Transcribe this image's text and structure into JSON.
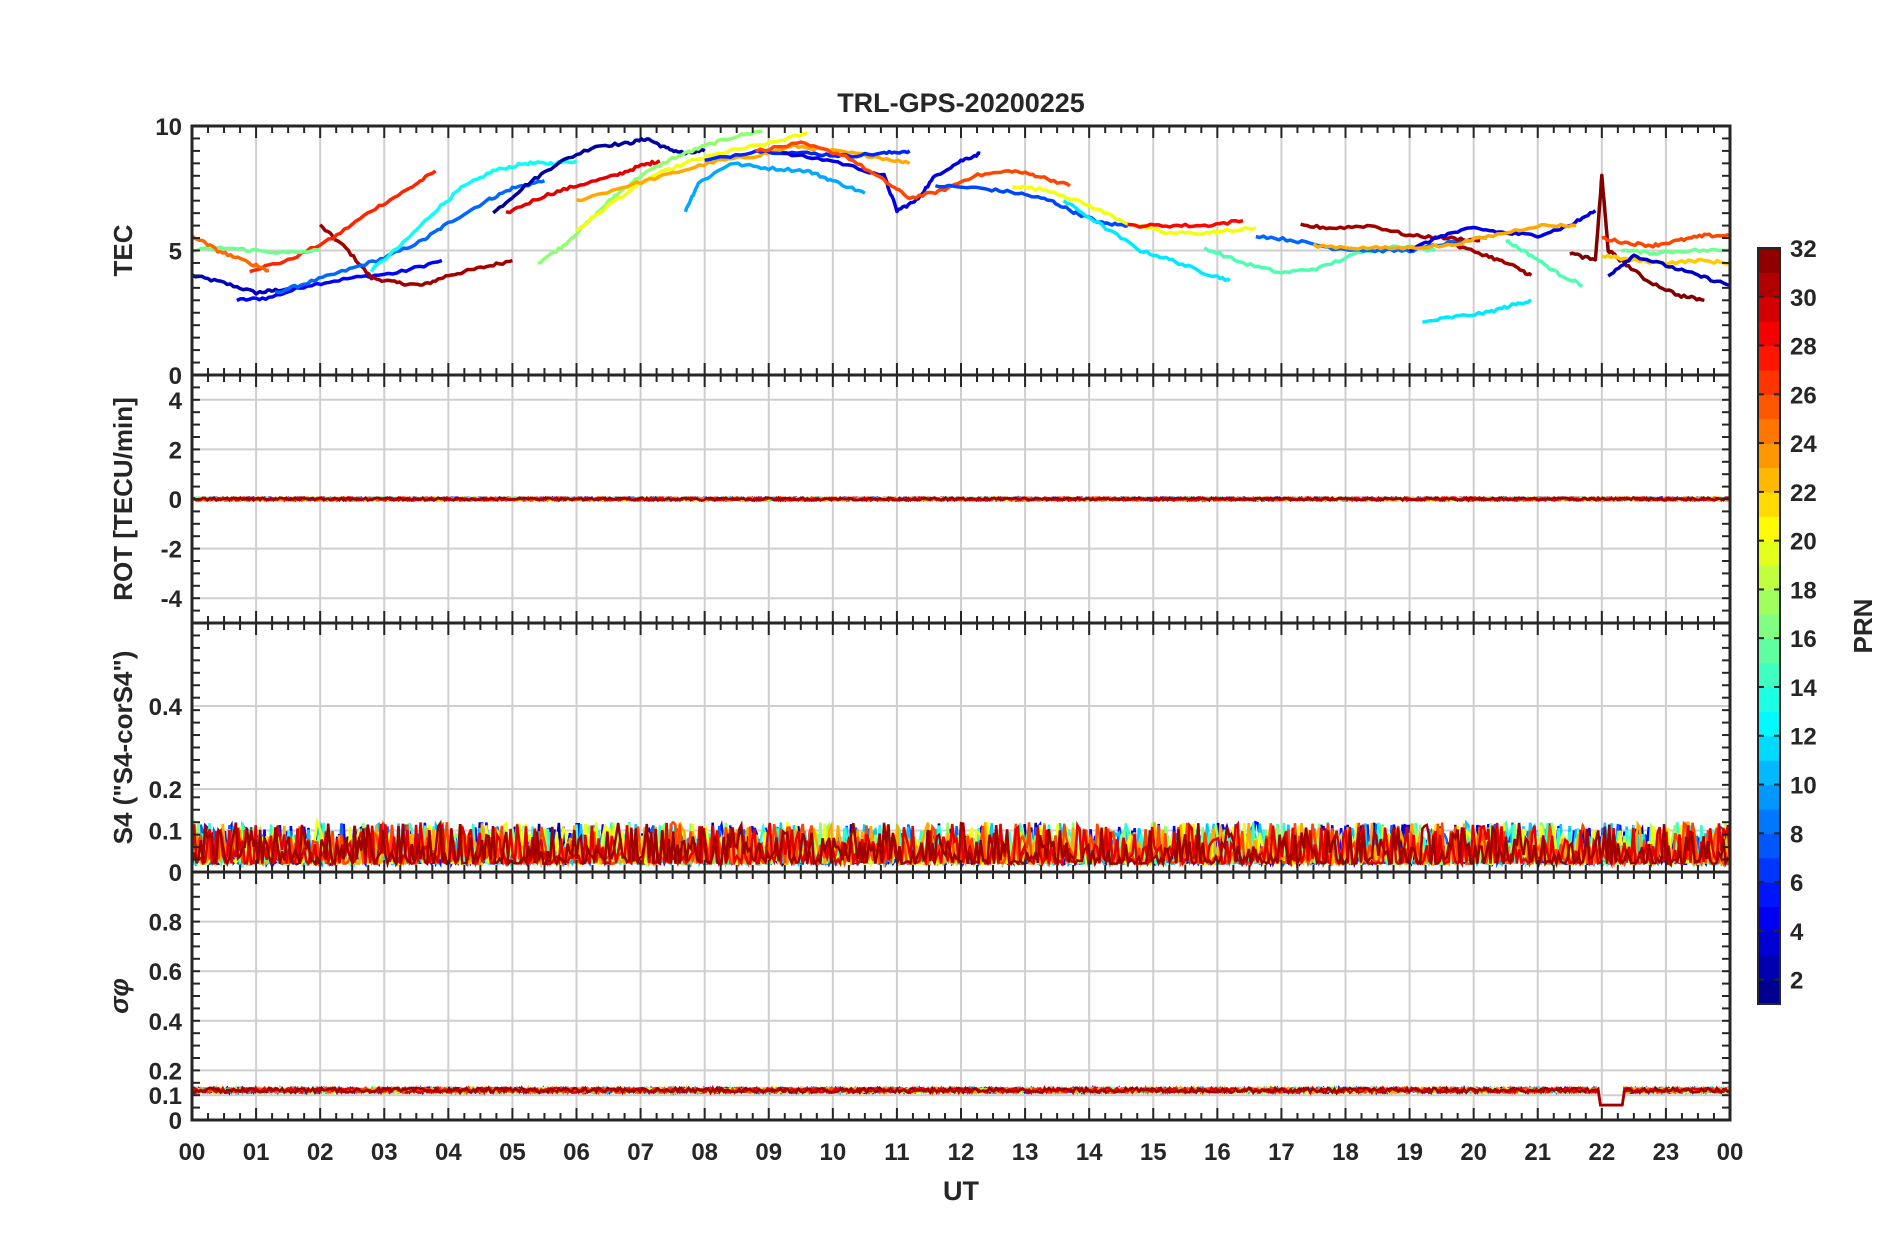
{
  "chart_data": {
    "title": "TRL-GPS-20200225",
    "type": "line",
    "xlabel": "UT",
    "xlim": [
      0,
      24
    ],
    "x_tick_labels": [
      "00",
      "01",
      "02",
      "03",
      "04",
      "05",
      "06",
      "07",
      "08",
      "09",
      "10",
      "11",
      "12",
      "13",
      "14",
      "15",
      "16",
      "17",
      "18",
      "19",
      "20",
      "21",
      "22",
      "23",
      "00"
    ],
    "colorbar": {
      "label": "PRN",
      "colormap": "jet",
      "range": [
        1,
        32
      ],
      "tick_values": [
        2,
        4,
        6,
        8,
        10,
        12,
        14,
        16,
        18,
        20,
        22,
        24,
        26,
        28,
        30,
        32
      ],
      "tick_labels": [
        "2",
        "4",
        "6",
        "8",
        "10",
        "12",
        "14",
        "16",
        "18",
        "20",
        "22",
        "24",
        "26",
        "28",
        "30",
        "32"
      ]
    },
    "panels": [
      {
        "id": "tec",
        "ylabel": "TEC",
        "ylim": [
          0,
          10
        ],
        "y_ticks": [
          0,
          5,
          10
        ],
        "y_tick_labels": [
          "0",
          "5",
          "10"
        ],
        "grid": true,
        "series": [
          {
            "prn": 3,
            "x": [
              0,
              0.5,
              1,
              1.3,
              1.8
            ],
            "y": [
              4.0,
              3.7,
              3.3,
              3.4,
              3.6
            ]
          },
          {
            "prn": 5,
            "x": [
              0.7,
              1.2,
              1.8,
              2.5,
              3.2,
              3.9
            ],
            "y": [
              3.0,
              3.1,
              3.6,
              3.9,
              4.1,
              4.6
            ]
          },
          {
            "prn": 31,
            "x": [
              2.0,
              2.4,
              2.8,
              3.2,
              3.6,
              4.0,
              4.5,
              5.0
            ],
            "y": [
              6.0,
              5.1,
              3.9,
              3.7,
              3.6,
              4.0,
              4.3,
              4.6
            ]
          },
          {
            "prn": 27,
            "x": [
              0.9,
              1.5,
              2.2,
              2.8,
              3.4,
              3.8
            ],
            "y": [
              4.2,
              4.6,
              5.5,
              6.6,
              7.5,
              8.2
            ]
          },
          {
            "prn": 8,
            "x": [
              1.3,
              1.8,
              2.4,
              3.0,
              3.6,
              4.0,
              4.6,
              5.0,
              5.5
            ],
            "y": [
              3.3,
              3.7,
              4.2,
              4.7,
              5.4,
              6.1,
              7.0,
              7.5,
              7.8
            ]
          },
          {
            "prn": 13,
            "x": [
              2.8,
              3.3,
              3.8,
              4.2,
              4.7,
              5.2,
              5.6,
              6.0
            ],
            "y": [
              4.2,
              5.3,
              6.6,
              7.5,
              8.2,
              8.5,
              8.5,
              8.6
            ]
          },
          {
            "prn": 2,
            "x": [
              4.7,
              5.2,
              5.7,
              6.3,
              6.8,
              7.1,
              7.4,
              7.7,
              8.0
            ],
            "y": [
              6.5,
              7.6,
              8.5,
              9.2,
              9.3,
              9.5,
              9.1,
              8.9,
              9.0
            ]
          },
          {
            "prn": 29,
            "x": [
              4.9,
              5.5,
              6.0,
              6.6,
              7.0,
              7.3
            ],
            "y": [
              6.5,
              7.2,
              7.6,
              8.0,
              8.4,
              8.6
            ]
          },
          {
            "prn": 17,
            "x": [
              5.4,
              5.8,
              6.2,
              6.6,
              7.0,
              7.5,
              8.0,
              8.5,
              8.9
            ],
            "y": [
              4.5,
              5.2,
              6.2,
              7.2,
              8.0,
              8.7,
              9.2,
              9.6,
              9.8
            ]
          },
          {
            "prn": 20,
            "x": [
              6.0,
              6.6,
              7.2,
              7.8,
              8.4,
              9.0,
              9.6
            ],
            "y": [
              5.8,
              7.0,
              8.0,
              8.6,
              9.0,
              9.3,
              9.7
            ]
          },
          {
            "prn": 23,
            "x": [
              6.0,
              6.8,
              7.5,
              8.2,
              8.8,
              9.4,
              10.0,
              10.6,
              11.2
            ],
            "y": [
              7.0,
              7.6,
              8.1,
              8.6,
              8.8,
              9.2,
              9.0,
              8.8,
              8.5
            ]
          },
          {
            "prn": 10,
            "x": [
              7.7,
              7.9,
              8.4,
              9.0,
              9.6,
              10.0,
              10.5
            ],
            "y": [
              6.6,
              7.7,
              8.5,
              8.3,
              8.2,
              7.8,
              7.3
            ]
          },
          {
            "prn": 6,
            "x": [
              8.0,
              8.8,
              9.6,
              10.2,
              10.8,
              11.2
            ],
            "y": [
              8.6,
              9.0,
              8.9,
              8.8,
              8.9,
              9.0
            ]
          },
          {
            "prn": 4,
            "x": [
              9.2,
              10.0,
              10.8,
              11.0,
              11.3,
              11.6,
              12.0,
              12.3
            ],
            "y": [
              8.9,
              8.6,
              8.0,
              6.6,
              7.0,
              8.0,
              8.6,
              8.9
            ]
          },
          {
            "prn": 26,
            "x": [
              8.8,
              9.5,
              10.2,
              10.8,
              11.2,
              11.7,
              12.2,
              12.8,
              13.2,
              13.7
            ],
            "y": [
              9.0,
              9.3,
              8.8,
              7.8,
              7.1,
              7.4,
              8.0,
              8.2,
              8.0,
              7.6
            ]
          },
          {
            "prn": 7,
            "x": [
              11.6,
              12.3,
              12.9,
              13.4,
              13.8,
              14.2,
              14.6
            ],
            "y": [
              7.6,
              7.5,
              7.3,
              7.0,
              6.5,
              6.1,
              6.0
            ]
          },
          {
            "prn": 20,
            "x": [
              12.8,
              13.4,
              14.0,
              14.6,
              15.2,
              15.8,
              16.2,
              16.6
            ],
            "y": [
              7.6,
              7.4,
              6.8,
              6.1,
              5.7,
              5.7,
              5.8,
              5.9
            ]
          },
          {
            "prn": 12,
            "x": [
              13.6,
              14.2,
              14.8,
              15.3,
              15.8,
              16.2
            ],
            "y": [
              7.0,
              6.0,
              5.0,
              4.6,
              4.1,
              3.8
            ]
          },
          {
            "prn": 28,
            "x": [
              14.6,
              15.2,
              15.8,
              16.4
            ],
            "y": [
              6.0,
              6.0,
              6.0,
              6.2
            ]
          },
          {
            "prn": 15,
            "x": [
              15.8,
              16.4,
              17.0,
              17.6,
              18.2,
              18.8,
              19.4
            ],
            "y": [
              5.1,
              4.5,
              4.1,
              4.3,
              4.9,
              5.2,
              5.0
            ]
          },
          {
            "prn": 8,
            "x": [
              16.6,
              17.2,
              17.8,
              18.4,
              19.0,
              19.6,
              20.2
            ],
            "y": [
              5.6,
              5.4,
              5.1,
              5.0,
              5.0,
              5.3,
              5.5
            ]
          },
          {
            "prn": 31,
            "x": [
              17.3,
              17.8,
              18.4,
              19.0,
              19.6,
              20.1
            ],
            "y": [
              6.0,
              5.9,
              6.0,
              5.6,
              5.5,
              5.4
            ]
          },
          {
            "prn": 31,
            "x": [
              19.6,
              20.2,
              20.6,
              20.9
            ],
            "y": [
              5.3,
              4.8,
              4.4,
              4.0
            ]
          },
          {
            "prn": 12,
            "x": [
              19.2,
              19.6,
              20.2,
              20.6,
              20.9
            ],
            "y": [
              2.1,
              2.3,
              2.5,
              2.8,
              3.0
            ]
          },
          {
            "prn": 4,
            "x": [
              19.0,
              19.5,
              20.0,
              20.5,
              21.0,
              21.5,
              21.9
            ],
            "y": [
              5.0,
              5.6,
              5.9,
              5.7,
              5.6,
              6.0,
              6.6
            ]
          },
          {
            "prn": 23,
            "x": [
              17.5,
              18.2,
              18.9,
              19.6,
              20.3,
              21.0,
              21.6
            ],
            "y": [
              5.2,
              5.1,
              5.1,
              5.2,
              5.6,
              6.0,
              6.0
            ]
          },
          {
            "prn": 15,
            "x": [
              20.5,
              20.9,
              21.3,
              21.7
            ],
            "y": [
              5.4,
              4.8,
              4.1,
              3.6
            ]
          },
          {
            "prn": 32,
            "x": [
              21.5,
              21.9,
              22.0,
              22.1,
              22.3,
              22.7,
              23.2,
              23.6
            ],
            "y": [
              4.9,
              4.6,
              8.0,
              5.0,
              4.6,
              3.8,
              3.2,
              3.0
            ]
          },
          {
            "prn": 26,
            "x": [
              22.0,
              22.4,
              22.8,
              23.2,
              23.6,
              24.0
            ],
            "y": [
              5.5,
              5.3,
              5.2,
              5.4,
              5.6,
              5.6
            ]
          },
          {
            "prn": 22,
            "x": [
              22.0,
              22.5,
              23.0,
              23.5,
              24.0
            ],
            "y": [
              4.8,
              4.6,
              4.5,
              4.6,
              4.5
            ]
          },
          {
            "prn": 16,
            "x": [
              22.3,
              22.8,
              23.4,
              24.0
            ],
            "y": [
              5.0,
              4.9,
              5.0,
              5.0
            ]
          },
          {
            "prn": 3,
            "x": [
              22.1,
              22.5,
              23.0,
              23.5,
              24.0
            ],
            "y": [
              4.0,
              4.8,
              4.4,
              4.0,
              3.6
            ]
          },
          {
            "prn": 16,
            "x": [
              0,
              0.5,
              1.0,
              1.5,
              2.0
            ],
            "y": [
              5.0,
              5.1,
              5.0,
              4.9,
              5.0
            ]
          },
          {
            "prn": 25,
            "x": [
              0,
              0.4,
              0.8,
              1.2
            ],
            "y": [
              5.6,
              5.0,
              4.6,
              4.2
            ]
          }
        ]
      },
      {
        "id": "rot",
        "ylabel": "ROT [TECU/min]",
        "ylim": [
          -5,
          5
        ],
        "y_ticks": [
          -4,
          -2,
          0,
          2,
          4
        ],
        "y_tick_labels": [
          "-4",
          "-2",
          "0",
          "2",
          "4"
        ],
        "grid": true,
        "level": 0,
        "spread": 0.12
      },
      {
        "id": "s4",
        "ylabel": "S4 (\"S4-corS4\")",
        "ylim": [
          0,
          0.6
        ],
        "y_ticks": [
          0,
          0.1,
          0.2,
          0.4
        ],
        "y_tick_labels": [
          "0",
          "0.1",
          "0.2",
          "0.4"
        ],
        "grid": true,
        "level": 0.05,
        "spread": 0.1
      },
      {
        "id": "sigma_phi",
        "ylabel": "σφ",
        "ylim": [
          0,
          1
        ],
        "y_ticks": [
          0,
          0.1,
          0.2,
          0.4,
          0.6,
          0.8
        ],
        "y_tick_labels": [
          "0",
          "0.1",
          "0.2",
          "0.4",
          "0.6",
          "0.8"
        ],
        "grid": true,
        "level": 0.12,
        "spread": 0.02
      }
    ]
  }
}
